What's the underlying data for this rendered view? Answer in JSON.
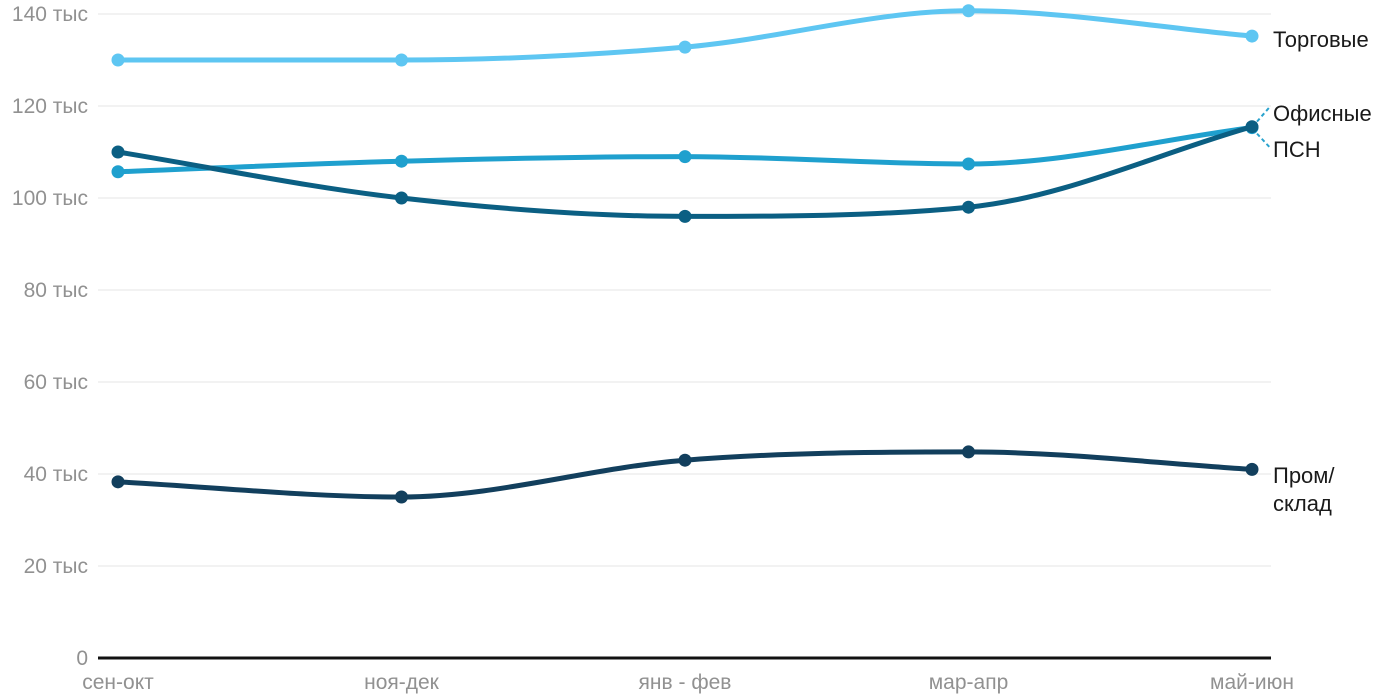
{
  "chart_data": {
    "type": "line",
    "title": "",
    "xlabel": "",
    "ylabel": "",
    "unit": "тыс",
    "ylim": [
      0,
      145
    ],
    "grid": "horizontal",
    "legend_position": "right-direct-labels",
    "categories": [
      "сен-окт",
      "ноя-дек",
      "янв - фев",
      "мар-апр",
      "май-июн"
    ],
    "y_axis": {
      "ticks": [
        {
          "value": 0,
          "label": "0"
        },
        {
          "value": 20,
          "label": "20 тыс"
        },
        {
          "value": 40,
          "label": "40 тыс"
        },
        {
          "value": 60,
          "label": "60 тыс"
        },
        {
          "value": 80,
          "label": "80 тыс"
        },
        {
          "value": 100,
          "label": "100 тыс"
        },
        {
          "value": 120,
          "label": "120 тыс"
        },
        {
          "value": 140,
          "label": "140 тыс"
        }
      ]
    },
    "series": [
      {
        "name": "Торговые",
        "slug": "torgovye",
        "label": "Торговые",
        "color": "#5EC6F2",
        "values": [
          130,
          130,
          132.8,
          140.7,
          135.2
        ]
      },
      {
        "name": "ПСН",
        "slug": "psn",
        "label": "ПСН",
        "color": "#1FA0CE",
        "values": [
          105.7,
          108,
          109,
          107.4,
          115.3
        ]
      },
      {
        "name": "Офисные",
        "slug": "ofisnye",
        "label": "Офисные",
        "color": "#0B5F83",
        "values": [
          110,
          100,
          96,
          98,
          115.5
        ]
      },
      {
        "name": "Пром/склад",
        "slug": "prom-sklad",
        "label": "Пром/\nсклад",
        "color": "#123F5D",
        "values": [
          38.3,
          35,
          43,
          44.8,
          41
        ]
      }
    ],
    "leader_line_color": "#2AA3CE"
  },
  "style": {
    "grid_color": "#E4E4E4",
    "axis_color": "#111111",
    "tick_text_color": "#919191"
  }
}
